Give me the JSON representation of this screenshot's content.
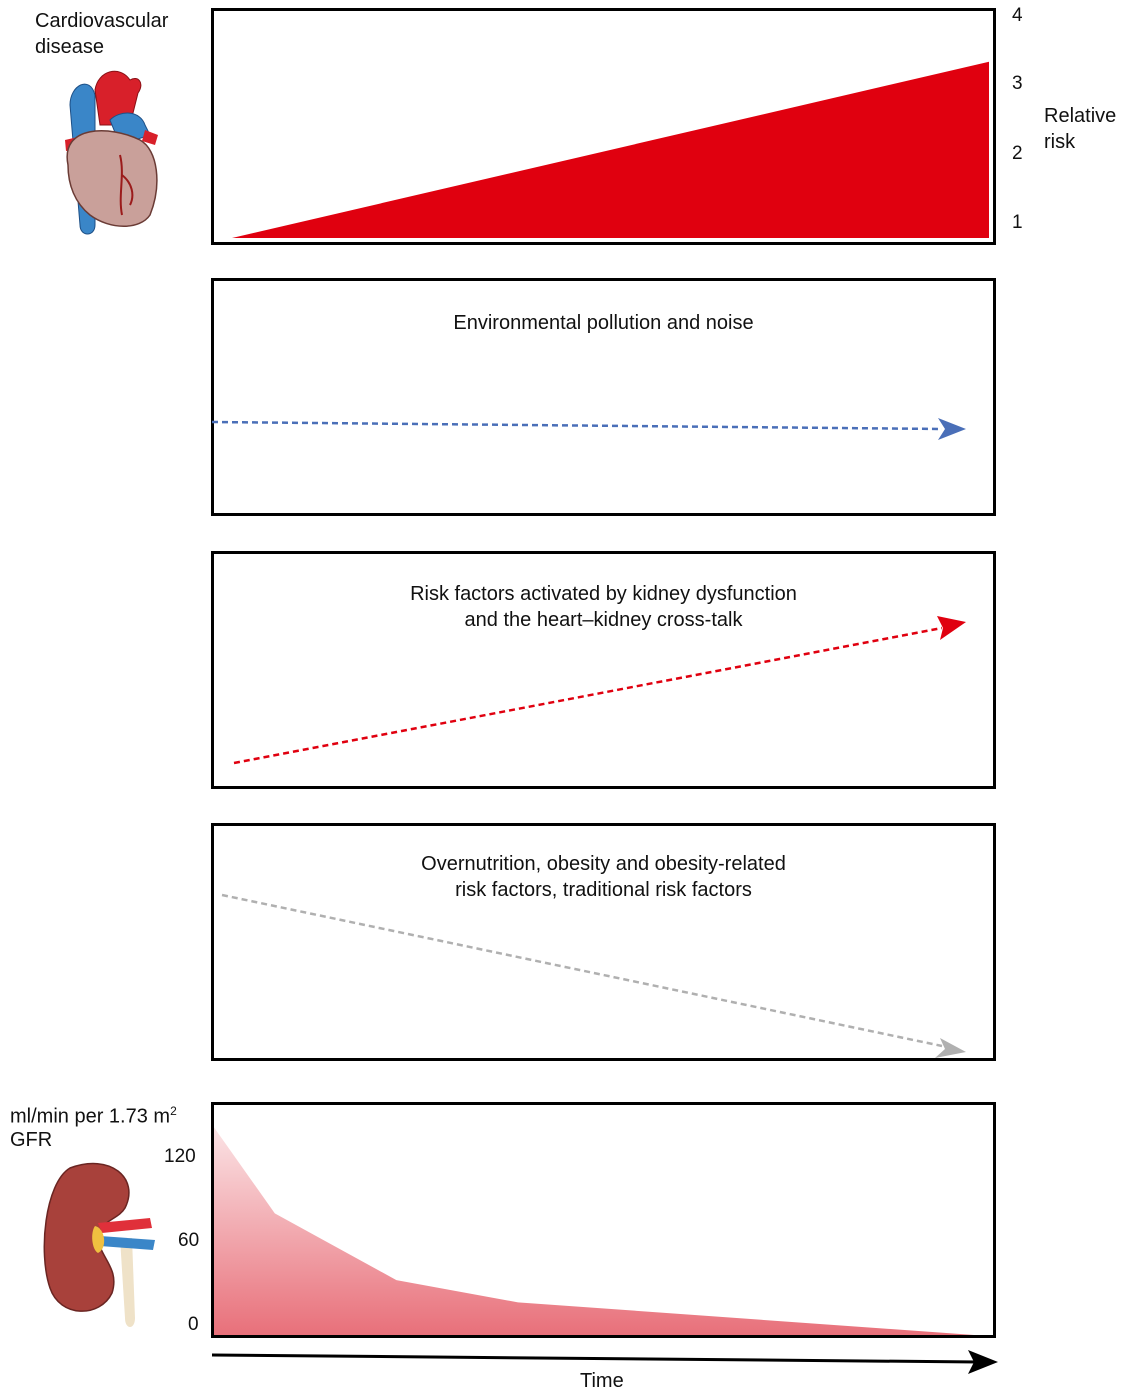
{
  "top": {
    "title_line1": "Cardiovascular",
    "title_line2": "disease",
    "axis_label_line1": "Relative",
    "axis_label_line2": "risk",
    "ticks": [
      "4",
      "3",
      "2",
      "1"
    ],
    "color": "#e0000f"
  },
  "panels": [
    {
      "line1": "Environmental pollution and noise",
      "line2": "",
      "color": "#4a6fb8",
      "trend": "flat"
    },
    {
      "line1": "Risk factors activated by kidney dysfunction",
      "line2": "and the heart–kidney cross-talk",
      "color": "#e0000f",
      "trend": "increasing"
    },
    {
      "line1": "Overnutrition, obesity and obesity-related",
      "line2": "risk factors, traditional risk factors",
      "color": "#b0b0b0",
      "trend": "decreasing"
    }
  ],
  "bottom": {
    "unit_label": "ml/min per 1.73 m",
    "unit_superscript": "2",
    "axis_label": "GFR",
    "ticks": [
      "120",
      "60",
      "0"
    ],
    "color": "#e8707a"
  },
  "x_axis_label": "Time",
  "chart_data": [
    {
      "type": "area",
      "title": "Cardiovascular disease",
      "ylabel": "Relative risk",
      "ylim": [
        1,
        4
      ],
      "x": [
        0,
        1
      ],
      "values": [
        1,
        3.25
      ],
      "xlabel": "Time"
    },
    {
      "type": "area",
      "ylabel": "GFR",
      "unit": "ml/min per 1.73 m2",
      "ylim": [
        0,
        120
      ],
      "x": [
        0,
        0.08,
        0.24,
        0.4,
        1
      ],
      "values": [
        140,
        82,
        37,
        22,
        0
      ],
      "xlabel": "Time"
    }
  ]
}
